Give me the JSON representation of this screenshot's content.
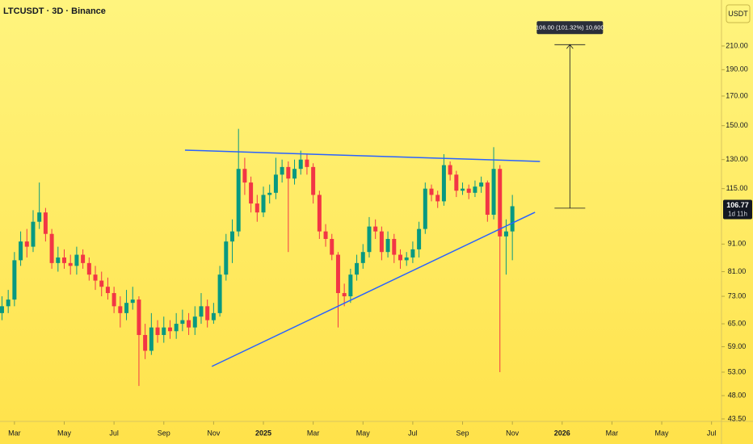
{
  "chart_data": {
    "type": "candlestick",
    "title": "LTCUSDT · 3D · Binance",
    "currency": "USDT",
    "x": [
      -0.5,
      -0.25,
      0,
      0.25,
      0.5,
      0.75,
      1,
      1.25,
      1.5,
      1.75,
      2,
      2.25,
      2.5,
      2.75,
      3,
      3.25,
      3.5,
      3.75,
      4,
      4.25,
      4.5,
      4.75,
      5,
      5.25,
      5.5,
      5.75,
      6,
      6.25,
      6.5,
      6.75,
      7,
      7.25,
      7.5,
      7.75,
      8,
      8.25,
      8.5,
      8.75,
      9,
      9.25,
      9.5,
      9.75,
      10,
      10.25,
      10.5,
      10.75,
      11,
      11.25,
      11.5,
      11.75,
      12,
      12.25,
      12.5,
      12.75,
      13,
      13.25,
      13.5,
      13.75,
      14,
      14.25,
      14.5,
      14.75,
      15,
      15.25,
      15.5,
      15.75,
      16,
      16.25,
      16.5,
      16.75,
      17,
      17.25,
      17.5,
      17.75,
      18,
      18.25,
      18.5,
      18.75,
      19,
      19.25,
      19.5,
      19.75,
      20
    ],
    "open": [
      68,
      70,
      72,
      85,
      92,
      90,
      100,
      104,
      95,
      84,
      86,
      84,
      83,
      87,
      84,
      80,
      78,
      76,
      74,
      70,
      68,
      71,
      72,
      62,
      58,
      64,
      62,
      64,
      63,
      65,
      66,
      64,
      67,
      70,
      66,
      68,
      80,
      92,
      96,
      125,
      118,
      108,
      104,
      112,
      113,
      122,
      126,
      120,
      125,
      130,
      126,
      112,
      96,
      93,
      87,
      74,
      73,
      80,
      84,
      88,
      98,
      96,
      88,
      93,
      87,
      85,
      86,
      89,
      97,
      115,
      112,
      109,
      127,
      122,
      114,
      115,
      113,
      116,
      118,
      103,
      125,
      94,
      96
    ],
    "high": [
      73,
      75,
      88,
      96,
      97,
      105,
      118,
      106,
      97,
      90,
      89,
      87,
      90,
      89,
      86,
      83,
      81,
      79,
      76,
      73,
      75,
      76,
      73,
      65,
      68,
      66,
      67,
      66,
      68,
      69,
      68,
      70,
      74,
      72,
      71,
      83,
      95,
      101,
      148,
      131,
      121,
      112,
      116,
      117,
      131,
      130,
      129,
      130,
      135,
      133,
      128,
      114,
      99,
      95,
      88,
      77,
      82,
      87,
      91,
      102,
      101,
      98,
      96,
      95,
      89,
      88,
      92,
      100,
      118,
      117,
      114,
      133,
      129,
      124,
      118,
      117,
      119,
      121,
      119,
      137,
      127,
      101,
      112
    ],
    "low": [
      66,
      68,
      70,
      83,
      86,
      88,
      97,
      92,
      82,
      81,
      82,
      80,
      80,
      82,
      78,
      75,
      73,
      72,
      68,
      64,
      66,
      69,
      50,
      56,
      57,
      60,
      60,
      61,
      61,
      63,
      62,
      62,
      65,
      64,
      65,
      67,
      78,
      84,
      94,
      112,
      104,
      100,
      102,
      108,
      110,
      118,
      88,
      117,
      122,
      122,
      108,
      93,
      90,
      85,
      64,
      70,
      71,
      78,
      82,
      86,
      93,
      85,
      86,
      84,
      82,
      83,
      84,
      86,
      95,
      109,
      106,
      107,
      119,
      111,
      112,
      110,
      111,
      113,
      100,
      101,
      53,
      80,
      85
    ],
    "close": [
      70,
      72,
      85,
      92,
      90,
      100,
      104,
      95,
      84,
      86,
      84,
      83,
      87,
      84,
      80,
      78,
      76,
      74,
      70,
      68,
      71,
      72,
      62,
      58,
      64,
      62,
      64,
      63,
      65,
      66,
      64,
      67,
      70,
      66,
      68,
      80,
      92,
      96,
      125,
      118,
      108,
      104,
      112,
      113,
      122,
      126,
      120,
      125,
      130,
      126,
      112,
      96,
      93,
      87,
      74,
      73,
      80,
      84,
      88,
      98,
      96,
      88,
      93,
      87,
      85,
      86,
      89,
      97,
      115,
      112,
      109,
      127,
      122,
      114,
      115,
      113,
      116,
      118,
      103,
      125,
      94,
      96,
      106.77
    ],
    "up_color": "#089981",
    "down_color": "#f23645",
    "xlim": [
      -0.58,
      28.4
    ],
    "xticks": [
      {
        "value": 0,
        "label": "Mar"
      },
      {
        "value": 2,
        "label": "May"
      },
      {
        "value": 4,
        "label": "Jul"
      },
      {
        "value": 6,
        "label": "Sep"
      },
      {
        "value": 8,
        "label": "Nov"
      },
      {
        "value": 10,
        "label": "2025"
      },
      {
        "value": 12,
        "label": "Mar"
      },
      {
        "value": 14,
        "label": "May"
      },
      {
        "value": 16,
        "label": "Jul"
      },
      {
        "value": 18,
        "label": "Sep"
      },
      {
        "value": 20,
        "label": "Nov"
      },
      {
        "value": 22,
        "label": "2026"
      },
      {
        "value": 24,
        "label": "Mar"
      },
      {
        "value": 26,
        "label": "May"
      },
      {
        "value": 28,
        "label": "Jul"
      }
    ],
    "ylim": [
      43.05,
      255
    ],
    "log_scale": true,
    "grid": false,
    "yticks": [
      {
        "value": 43.5,
        "label": "43.50"
      },
      {
        "value": 48,
        "label": "48.00"
      },
      {
        "value": 53,
        "label": "53.00"
      },
      {
        "value": 59,
        "label": "59.00"
      },
      {
        "value": 65,
        "label": "65.00"
      },
      {
        "value": 73,
        "label": "73.00"
      },
      {
        "value": 81,
        "label": "81.00"
      },
      {
        "value": 91,
        "label": "91.00"
      },
      {
        "value": 115,
        "label": "115.00"
      },
      {
        "value": 130,
        "label": "130.00"
      },
      {
        "value": 150,
        "label": "150.00"
      },
      {
        "value": 170,
        "label": "170.00"
      },
      {
        "value": 190,
        "label": "190.00"
      },
      {
        "value": 210,
        "label": "210.00"
      }
    ],
    "last_price": 106.77,
    "countdown": "1d 11h",
    "trendlines": [
      {
        "color": "#2962ff",
        "x": [
          6.85,
          21.11
        ],
        "y": [
          135.3,
          129
        ]
      },
      {
        "color": "#2962ff",
        "x": [
          7.93,
          20.91
        ],
        "y": [
          54.3,
          104.1
        ]
      }
    ],
    "measure": {
      "x": [
        22.31,
        22.31
      ],
      "y": [
        105.9,
        211.2
      ],
      "label": "106.00 (101.32%) 10,600"
    }
  }
}
